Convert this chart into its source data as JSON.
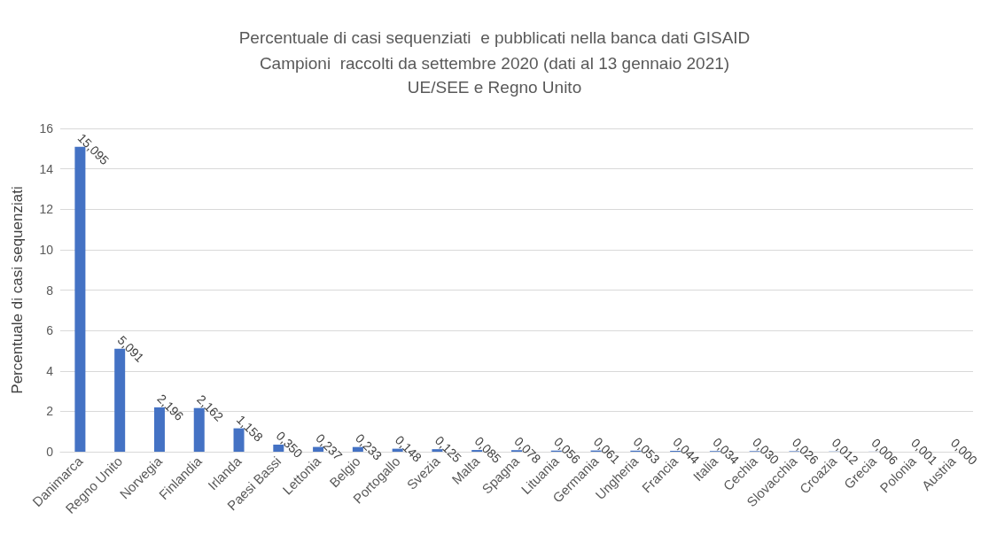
{
  "chart_data": {
    "type": "bar",
    "title": "Percentuale di casi sequenziati  e pubblicati nella banca dati GISAID",
    "subtitle": "Campioni  raccolti da settembre 2020 (dati al 13 gennaio 2021)\nUE/SEE e Regno Unito",
    "ylabel": "Percentuale di casi sequenziati",
    "categories": [
      "Danimarca",
      "Regno Unito",
      "Norvegia",
      "Finlandia",
      "Irlanda",
      "Paesi Bassi",
      "Lettonia",
      "Belgio",
      "Portogallo",
      "Svezia",
      "Malta",
      "Spagna",
      "Lituania",
      "Germania",
      "Ungheria",
      "Francia",
      "Italia",
      "Cechia",
      "Slovacchia",
      "Croazia",
      "Grecia",
      "Polonia",
      "Austria"
    ],
    "values": [
      15.095,
      5.091,
      2.196,
      2.162,
      1.158,
      0.35,
      0.237,
      0.233,
      0.148,
      0.125,
      0.085,
      0.078,
      0.056,
      0.061,
      0.053,
      0.044,
      0.034,
      0.03,
      0.026,
      0.012,
      0.006,
      0.001,
      0.0
    ],
    "value_labels": [
      "15,095",
      "5,091",
      "2,196",
      "2,162",
      "1,158",
      "0,350",
      "0,237",
      "0,233",
      "0,148",
      "0,125",
      "0,085",
      "0,078",
      "0,056",
      "0,061",
      "0,053",
      "0,044",
      "0,034",
      "0,030",
      "0,026",
      "0,012",
      "0,006",
      "0,001",
      "0,000"
    ],
    "color": "#4472c4",
    "ylim": [
      0,
      16
    ],
    "yticks": [
      0,
      2,
      4,
      6,
      8,
      10,
      12,
      14,
      16
    ],
    "grid": "y"
  }
}
